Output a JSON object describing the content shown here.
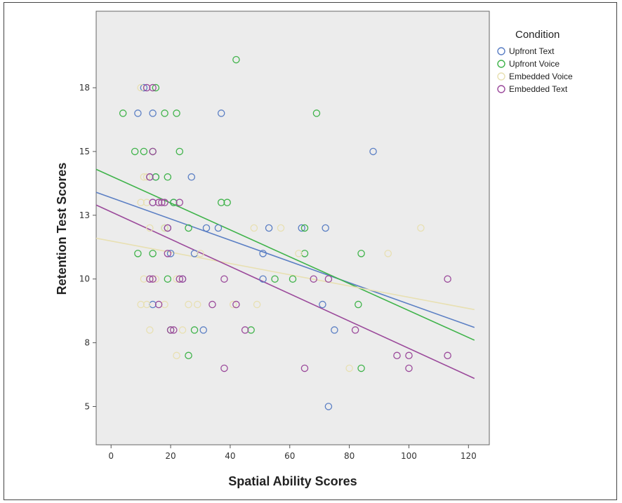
{
  "chart_data": {
    "type": "scatter",
    "title": "",
    "xlabel": "Spatial Ability Scores",
    "ylabel": "Retention Test Scores",
    "xlim": [
      -5,
      127
    ],
    "ylim": [
      3.5,
      20.5
    ],
    "xticks": [
      0,
      20,
      40,
      60,
      80,
      100,
      120
    ],
    "yticks": [
      5,
      8,
      10,
      13,
      15,
      18
    ],
    "ytick_positions": [
      5,
      7.5,
      10,
      12.5,
      15,
      17.5
    ],
    "grid": false,
    "legend": {
      "title": "Condition",
      "placement": "right"
    },
    "series": [
      {
        "name": "Upfront Text",
        "color": "#5b7fc4",
        "points": [
          [
            9,
            16.5
          ],
          [
            11,
            17.5
          ],
          [
            14,
            16.5
          ],
          [
            13,
            14
          ],
          [
            15,
            14
          ],
          [
            14,
            13
          ],
          [
            21,
            13
          ],
          [
            27,
            14
          ],
          [
            19,
            12
          ],
          [
            32,
            12
          ],
          [
            36,
            12
          ],
          [
            37,
            16.5
          ],
          [
            51,
            11
          ],
          [
            53,
            12
          ],
          [
            64,
            12
          ],
          [
            72,
            12
          ],
          [
            88,
            15
          ],
          [
            71,
            9
          ],
          [
            75,
            8
          ],
          [
            73,
            5
          ],
          [
            31,
            8
          ],
          [
            20,
            11
          ],
          [
            14,
            9
          ],
          [
            24,
            10
          ],
          [
            51,
            10
          ],
          [
            28,
            11
          ]
        ],
        "fit": [
          [
            -5,
            13.4
          ],
          [
            122,
            8.1
          ]
        ]
      },
      {
        "name": "Upfront Voice",
        "color": "#3fb34a",
        "points": [
          [
            4,
            16.5
          ],
          [
            8,
            15
          ],
          [
            11,
            15
          ],
          [
            9,
            11
          ],
          [
            14,
            15
          ],
          [
            15,
            17.5
          ],
          [
            18,
            16.5
          ],
          [
            22,
            16.5
          ],
          [
            19,
            14
          ],
          [
            23,
            15
          ],
          [
            21,
            13
          ],
          [
            26,
            12
          ],
          [
            18,
            12
          ],
          [
            19,
            10
          ],
          [
            20,
            8
          ],
          [
            26,
            7
          ],
          [
            28,
            8
          ],
          [
            37,
            13
          ],
          [
            39,
            13
          ],
          [
            42,
            18.6
          ],
          [
            47,
            8
          ],
          [
            55,
            10
          ],
          [
            61,
            10
          ],
          [
            65,
            12
          ],
          [
            65,
            11
          ],
          [
            69,
            16.5
          ],
          [
            84,
            11
          ],
          [
            83,
            9
          ],
          [
            84,
            6.5
          ],
          [
            14,
            11
          ],
          [
            15,
            14
          ]
        ],
        "fit": [
          [
            -5,
            14.3
          ],
          [
            122,
            7.6
          ]
        ]
      },
      {
        "name": "Embedded Voice",
        "color": "#e8e0b2",
        "points": [
          [
            10,
            17.5
          ],
          [
            11,
            14
          ],
          [
            10,
            13
          ],
          [
            12,
            13
          ],
          [
            13,
            12
          ],
          [
            11,
            10
          ],
          [
            13,
            10
          ],
          [
            10,
            9
          ],
          [
            12,
            9
          ],
          [
            13,
            8
          ],
          [
            16,
            13
          ],
          [
            18,
            12
          ],
          [
            15,
            10
          ],
          [
            18,
            9
          ],
          [
            22,
            7
          ],
          [
            24,
            8
          ],
          [
            26,
            9
          ],
          [
            29,
            9
          ],
          [
            30,
            11
          ],
          [
            41,
            9
          ],
          [
            49,
            9
          ],
          [
            48,
            12
          ],
          [
            57,
            12
          ],
          [
            63,
            11
          ],
          [
            80,
            6.5
          ],
          [
            93,
            11
          ],
          [
            104,
            12
          ],
          [
            22,
            10
          ],
          [
            12,
            14
          ]
        ],
        "fit": [
          [
            -5,
            11.6
          ],
          [
            122,
            8.8
          ]
        ]
      },
      {
        "name": "Embedded Text",
        "color": "#9b4a9b",
        "points": [
          [
            12,
            17.5
          ],
          [
            14,
            17.5
          ],
          [
            14,
            15
          ],
          [
            13,
            14
          ],
          [
            16,
            13
          ],
          [
            14,
            13
          ],
          [
            13,
            10
          ],
          [
            14,
            10
          ],
          [
            16,
            9
          ],
          [
            18,
            13
          ],
          [
            19,
            12
          ],
          [
            19,
            11
          ],
          [
            20,
            8
          ],
          [
            21,
            8
          ],
          [
            23,
            10
          ],
          [
            24,
            10
          ],
          [
            23,
            13
          ],
          [
            34,
            9
          ],
          [
            38,
            10
          ],
          [
            38,
            6.5
          ],
          [
            42,
            9
          ],
          [
            45,
            8
          ],
          [
            65,
            6.5
          ],
          [
            68,
            10
          ],
          [
            73,
            10
          ],
          [
            82,
            8
          ],
          [
            96,
            7
          ],
          [
            100,
            7
          ],
          [
            100,
            6.5
          ],
          [
            113,
            7
          ],
          [
            113,
            10
          ],
          [
            17,
            13
          ]
        ],
        "fit": [
          [
            -5,
            12.9
          ],
          [
            122,
            6.1
          ]
        ]
      }
    ]
  }
}
